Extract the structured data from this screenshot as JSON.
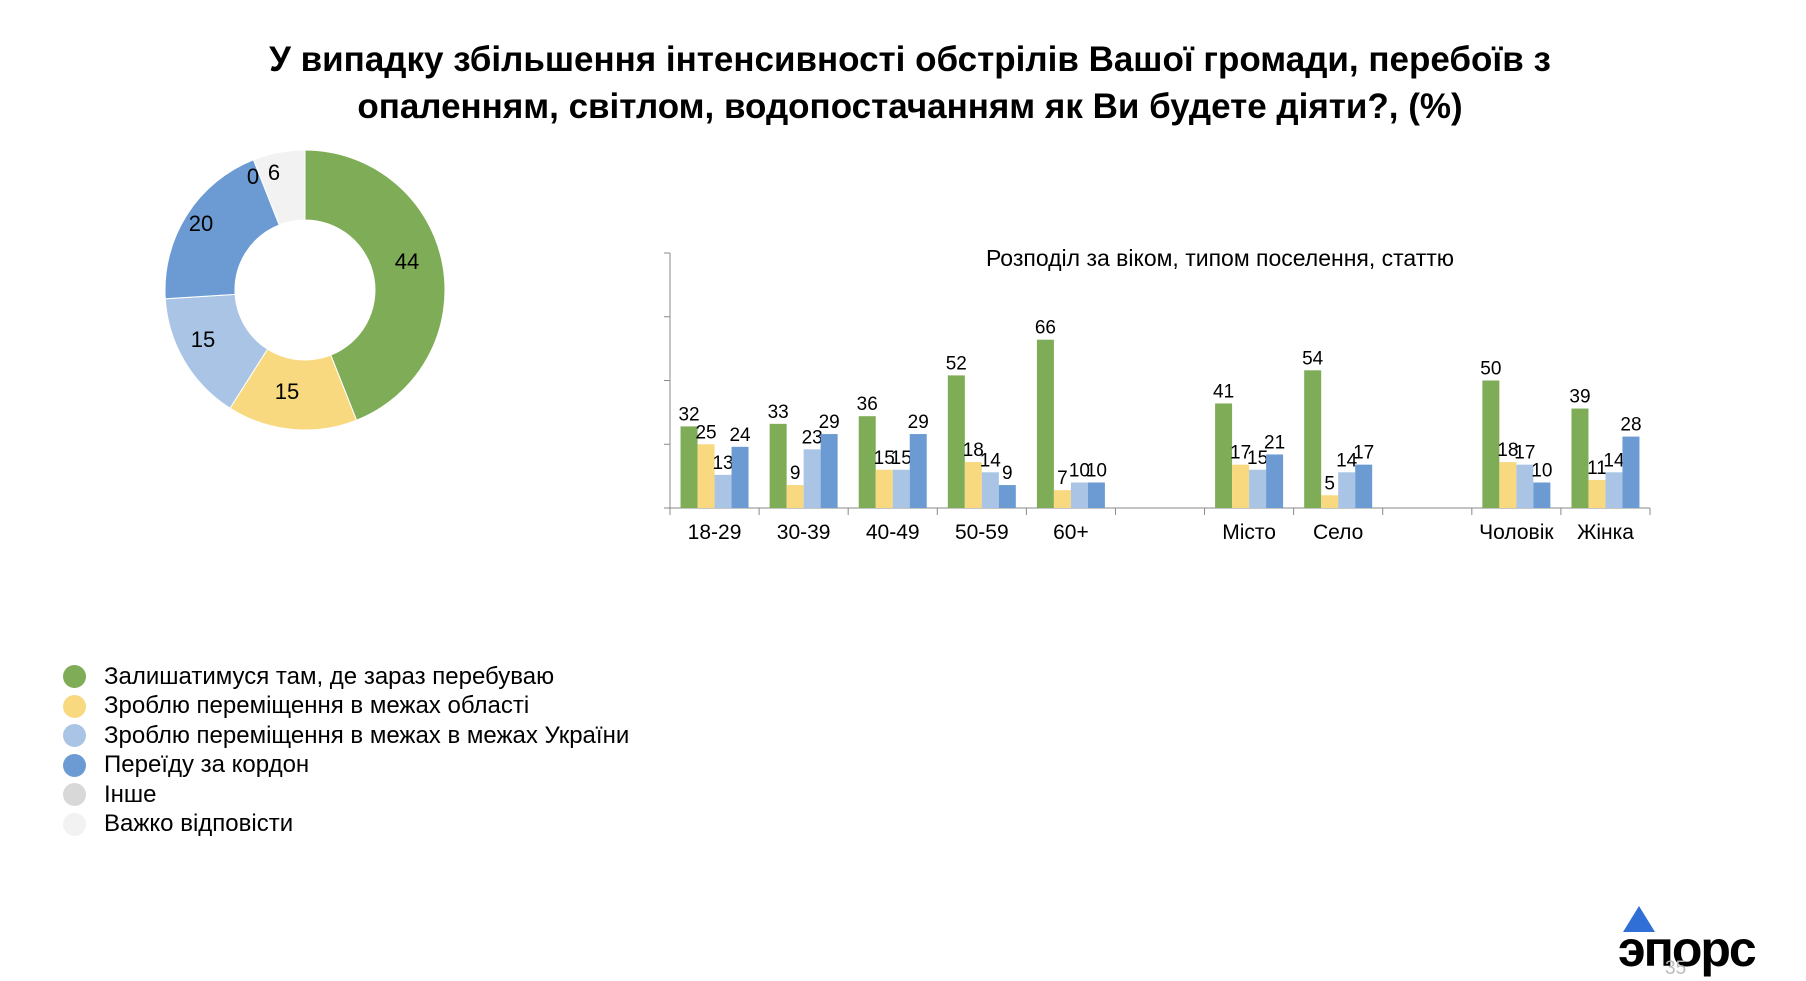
{
  "title": {
    "line1": "У випадку збільшення інтенсивності обстрілів Вашої громади, перебоїв з",
    "line2": "опаленням, світлом, водопостачанням  як Ви будете діяти?, (%)"
  },
  "colors": {
    "green": "#7fac56",
    "yellow": "#f8d980",
    "lightblue": "#a9c4e4",
    "blue": "#6b9bd2",
    "gray": "#d8d8d8",
    "verylight": "#f2f2f2"
  },
  "legend": [
    {
      "label": "Залишатимуся там, де зараз перебуваю",
      "color": "#7fac56"
    },
    {
      "label": "Зроблю переміщення в межах області",
      "color": "#f8d980"
    },
    {
      "label": "Зроблю переміщення в межах в межах України",
      "color": "#a9c4e4"
    },
    {
      "label": "Переїду  за кордон",
      "color": "#6b9bd2"
    },
    {
      "label": "Інше",
      "color": "#d8d8d8"
    },
    {
      "label": "Важко відповісти",
      "color": "#f2f2f2"
    }
  ],
  "chart_data": [
    {
      "type": "pie",
      "donut": true,
      "labels": [
        "Залишатимуся там, де зараз перебуваю",
        "Зроблю переміщення в межах області",
        "Зроблю переміщення в межах в межах України",
        "Переїду  за кордон",
        "Інше",
        "Важко відповісти"
      ],
      "values": [
        44,
        15,
        15,
        20,
        0,
        6
      ],
      "value_labels": [
        "44",
        "15",
        "15",
        "20",
        "0",
        "6"
      ],
      "colors": [
        "#7fac56",
        "#f8d980",
        "#a9c4e4",
        "#6b9bd2",
        "#d8d8d8",
        "#f2f2f2"
      ]
    },
    {
      "type": "bar",
      "title": "Розподіл за віком, типом поселення, статтю",
      "categories": [
        "18-29",
        "30-39",
        "40-49",
        "50-59",
        "60+",
        "",
        "Місто",
        "Село",
        "",
        "Чоловік",
        "Жінка"
      ],
      "series": [
        {
          "name": "Залишатимуся там, де зараз перебуваю",
          "color": "#7fac56",
          "values": [
            32,
            33,
            36,
            52,
            66,
            null,
            41,
            54,
            null,
            50,
            39
          ]
        },
        {
          "name": "Зроблю переміщення в межах області",
          "color": "#f8d980",
          "values": [
            25,
            9,
            15,
            18,
            7,
            null,
            17,
            5,
            null,
            18,
            11
          ]
        },
        {
          "name": "Зроблю переміщення в межах в межах України",
          "color": "#a9c4e4",
          "values": [
            13,
            23,
            15,
            14,
            10,
            null,
            15,
            14,
            null,
            17,
            14
          ]
        },
        {
          "name": "Переїду  за кордон",
          "color": "#6b9bd2",
          "values": [
            24,
            29,
            29,
            9,
            10,
            null,
            21,
            17,
            null,
            10,
            28
          ]
        }
      ],
      "ylim": [
        0,
        100
      ],
      "yticks": [
        0,
        25,
        50,
        75,
        100
      ],
      "legend": "none"
    }
  ],
  "logo": {
    "text": "эпорс"
  },
  "page_number": "35"
}
